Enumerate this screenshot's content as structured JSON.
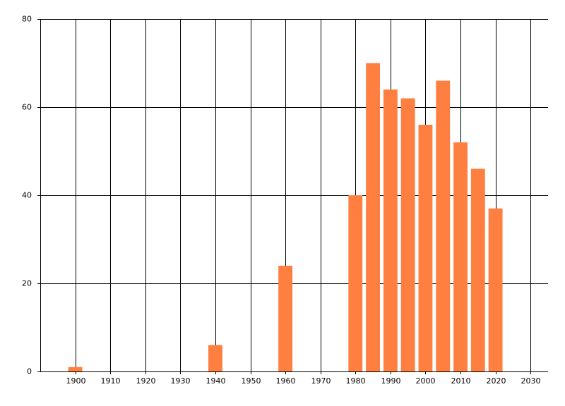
{
  "chart_data": {
    "type": "bar",
    "x": [
      1900,
      1940,
      1960,
      1980,
      1985,
      1990,
      1995,
      2000,
      2005,
      2010,
      2015,
      2020
    ],
    "values": [
      1,
      6,
      24,
      40,
      70,
      64,
      62,
      56,
      66,
      52,
      46,
      37
    ],
    "color": "#ff7f40",
    "xlim": [
      1890,
      2035
    ],
    "xticks": [
      1900,
      1910,
      1920,
      1930,
      1940,
      1950,
      1960,
      1970,
      1980,
      1990,
      2000,
      2010,
      2020,
      2030
    ],
    "ylim": [
      0,
      80
    ],
    "yticks": [
      0,
      20,
      40,
      60,
      80
    ],
    "grid": true
  }
}
